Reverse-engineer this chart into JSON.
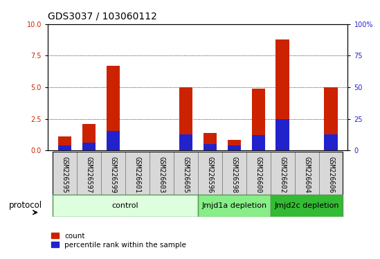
{
  "title": "GDS3037 / 103060112",
  "samples": [
    "GSM226595",
    "GSM226597",
    "GSM226599",
    "GSM226601",
    "GSM226603",
    "GSM226605",
    "GSM226596",
    "GSM226598",
    "GSM226600",
    "GSM226602",
    "GSM226604",
    "GSM226606"
  ],
  "red_values": [
    1.1,
    2.1,
    6.7,
    0.0,
    0.0,
    5.0,
    1.4,
    0.85,
    4.9,
    8.8,
    0.0,
    5.0
  ],
  "blue_values": [
    0.38,
    0.62,
    1.55,
    0.0,
    0.0,
    1.25,
    0.48,
    0.38,
    1.22,
    2.5,
    0.0,
    1.25
  ],
  "ylim_left": [
    0,
    10
  ],
  "ylim_right": [
    0,
    100
  ],
  "yticks_left": [
    0,
    2.5,
    5.0,
    7.5,
    10
  ],
  "yticks_right": [
    0,
    25,
    50,
    75,
    100
  ],
  "red_color": "#cc2200",
  "blue_color": "#2222cc",
  "bar_width": 0.55,
  "groups": [
    {
      "label": "control",
      "start": 0,
      "end": 5,
      "color": "#ddffdd",
      "edge": "#aaccaa"
    },
    {
      "label": "Jmjd1a depletion",
      "start": 6,
      "end": 8,
      "color": "#88ee88",
      "edge": "#55aa55"
    },
    {
      "label": "Jmjd2c depletion",
      "start": 9,
      "end": 11,
      "color": "#33bb33",
      "edge": "#229922"
    }
  ],
  "protocol_label": "protocol",
  "legend_count": "count",
  "legend_percentile": "percentile rank within the sample",
  "title_fontsize": 10,
  "tick_fontsize": 7,
  "label_fontsize": 8,
  "group_fontsize": 8,
  "protocol_fontsize": 8.5
}
